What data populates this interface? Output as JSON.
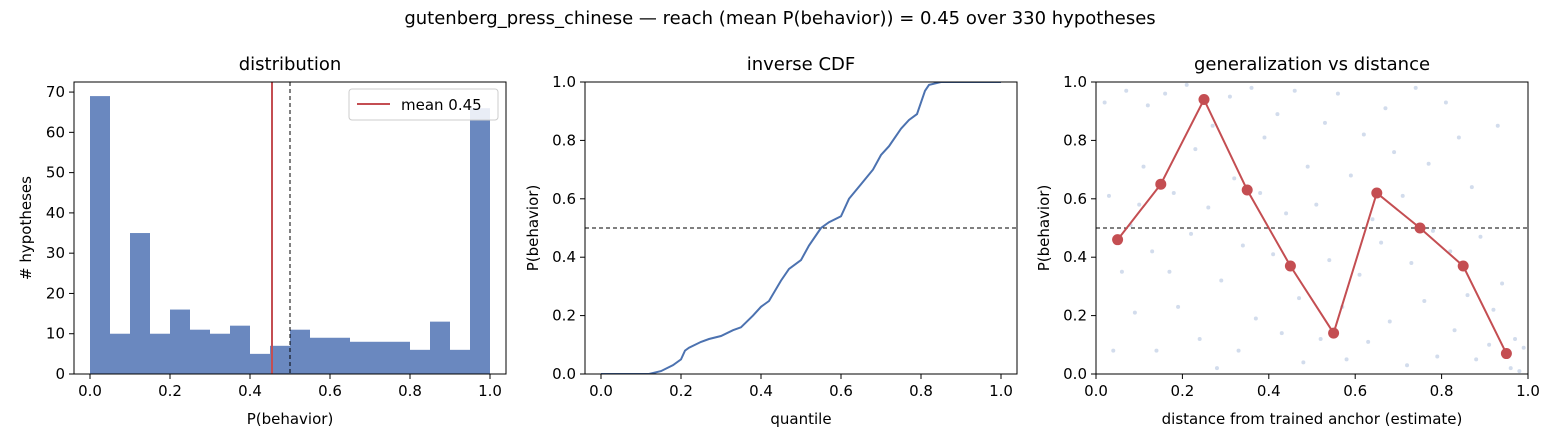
{
  "figure": {
    "suptitle": "gutenberg_press_chinese  —  reach (mean P(behavior)) = 0.45  over 330 hypotheses"
  },
  "colors": {
    "hist": "#6a88bf",
    "mean_line": "#c44e52",
    "cdf_line": "#4c72b0",
    "dots": "#c44e52",
    "scatter": "#b4c4e0"
  },
  "chart_data": [
    {
      "type": "bar",
      "title": "distribution",
      "xlabel": "P(behavior)",
      "ylabel": "# hypotheses",
      "bin_edges": [
        0.0,
        0.05,
        0.1,
        0.15,
        0.2,
        0.25,
        0.3,
        0.35,
        0.4,
        0.45,
        0.5,
        0.55,
        0.6,
        0.65,
        0.7,
        0.75,
        0.8,
        0.85,
        0.9,
        0.95,
        1.0
      ],
      "values": [
        69,
        10,
        35,
        10,
        16,
        11,
        10,
        12,
        5,
        7,
        11,
        9,
        9,
        8,
        8,
        8,
        6,
        13,
        6,
        66
      ],
      "xlim": [
        -0.04,
        1.04
      ],
      "ylim": [
        0,
        72.5
      ],
      "xticks": [
        0.0,
        0.2,
        0.4,
        0.6,
        0.8,
        1.0
      ],
      "xtick_labels": [
        "0.0",
        "0.2",
        "0.4",
        "0.6",
        "0.8",
        "1.0"
      ],
      "yticks": [
        0,
        10,
        20,
        30,
        40,
        50,
        60,
        70
      ],
      "ytick_labels": [
        "0",
        "10",
        "20",
        "30",
        "40",
        "50",
        "60",
        "70"
      ],
      "mean": 0.455,
      "threshold": 0.5,
      "legend": {
        "label": "mean 0.45",
        "position": "upper right"
      },
      "grid": false
    },
    {
      "type": "line",
      "title": "inverse CDF",
      "xlabel": "quantile",
      "ylabel": "P(behavior)",
      "x": [
        0.0,
        0.12,
        0.15,
        0.18,
        0.2,
        0.21,
        0.22,
        0.25,
        0.27,
        0.3,
        0.33,
        0.35,
        0.38,
        0.4,
        0.42,
        0.45,
        0.47,
        0.5,
        0.52,
        0.55,
        0.57,
        0.6,
        0.62,
        0.65,
        0.68,
        0.7,
        0.72,
        0.75,
        0.77,
        0.79,
        0.8,
        0.81,
        0.82,
        0.85,
        1.0
      ],
      "values": [
        0.0,
        0.0,
        0.01,
        0.03,
        0.05,
        0.08,
        0.09,
        0.11,
        0.12,
        0.13,
        0.15,
        0.16,
        0.2,
        0.23,
        0.25,
        0.32,
        0.36,
        0.39,
        0.44,
        0.5,
        0.52,
        0.54,
        0.6,
        0.65,
        0.7,
        0.75,
        0.78,
        0.84,
        0.87,
        0.89,
        0.93,
        0.97,
        0.99,
        1.0,
        1.0
      ],
      "xlim": [
        -0.04,
        1.04
      ],
      "ylim": [
        0,
        1
      ],
      "xticks": [
        0.0,
        0.2,
        0.4,
        0.6,
        0.8,
        1.0
      ],
      "xtick_labels": [
        "0.0",
        "0.2",
        "0.4",
        "0.6",
        "0.8",
        "1.0"
      ],
      "yticks": [
        0.0,
        0.2,
        0.4,
        0.6,
        0.8,
        1.0
      ],
      "ytick_labels": [
        "0.0",
        "0.2",
        "0.4",
        "0.6",
        "0.8",
        "1.0"
      ],
      "threshold": 0.5,
      "grid": false
    },
    {
      "type": "scatter",
      "title": "generalization vs distance",
      "xlabel": "distance from trained anchor (estimate)",
      "ylabel": "P(behavior)",
      "x": [
        0.05,
        0.15,
        0.25,
        0.35,
        0.45,
        0.55,
        0.65,
        0.75,
        0.85,
        0.95
      ],
      "values": [
        0.46,
        0.65,
        0.94,
        0.63,
        0.37,
        0.14,
        0.62,
        0.5,
        0.37,
        0.07
      ],
      "background_points": [
        [
          0.02,
          0.93
        ],
        [
          0.03,
          0.61
        ],
        [
          0.04,
          0.08
        ],
        [
          0.06,
          0.35
        ],
        [
          0.07,
          0.97
        ],
        [
          0.08,
          0.51
        ],
        [
          0.09,
          0.21
        ],
        [
          0.1,
          0.58
        ],
        [
          0.11,
          0.71
        ],
        [
          0.12,
          0.92
        ],
        [
          0.13,
          0.42
        ],
        [
          0.14,
          0.08
        ],
        [
          0.16,
          0.96
        ],
        [
          0.17,
          0.35
        ],
        [
          0.18,
          0.62
        ],
        [
          0.19,
          0.23
        ],
        [
          0.21,
          0.99
        ],
        [
          0.22,
          0.48
        ],
        [
          0.23,
          0.77
        ],
        [
          0.24,
          0.12
        ],
        [
          0.26,
          0.57
        ],
        [
          0.27,
          0.85
        ],
        [
          0.28,
          0.02
        ],
        [
          0.29,
          0.32
        ],
        [
          0.31,
          0.95
        ],
        [
          0.32,
          0.67
        ],
        [
          0.33,
          0.08
        ],
        [
          0.34,
          0.44
        ],
        [
          0.36,
          0.98
        ],
        [
          0.37,
          0.19
        ],
        [
          0.38,
          0.62
        ],
        [
          0.39,
          0.81
        ],
        [
          0.41,
          0.41
        ],
        [
          0.42,
          0.89
        ],
        [
          0.43,
          0.14
        ],
        [
          0.44,
          0.55
        ],
        [
          0.46,
          0.97
        ],
        [
          0.47,
          0.26
        ],
        [
          0.48,
          0.04
        ],
        [
          0.49,
          0.71
        ],
        [
          0.51,
          0.58
        ],
        [
          0.52,
          0.12
        ],
        [
          0.53,
          0.86
        ],
        [
          0.54,
          0.39
        ],
        [
          0.56,
          0.96
        ],
        [
          0.57,
          0.23
        ],
        [
          0.58,
          0.05
        ],
        [
          0.59,
          0.68
        ],
        [
          0.61,
          0.34
        ],
        [
          0.62,
          0.82
        ],
        [
          0.63,
          0.11
        ],
        [
          0.64,
          0.53
        ],
        [
          0.66,
          0.45
        ],
        [
          0.67,
          0.91
        ],
        [
          0.68,
          0.18
        ],
        [
          0.69,
          0.76
        ],
        [
          0.71,
          0.61
        ],
        [
          0.72,
          0.03
        ],
        [
          0.73,
          0.38
        ],
        [
          0.74,
          0.98
        ],
        [
          0.76,
          0.25
        ],
        [
          0.77,
          0.72
        ],
        [
          0.78,
          0.49
        ],
        [
          0.79,
          0.06
        ],
        [
          0.81,
          0.93
        ],
        [
          0.82,
          0.42
        ],
        [
          0.83,
          0.15
        ],
        [
          0.84,
          0.81
        ],
        [
          0.86,
          0.27
        ],
        [
          0.87,
          0.64
        ],
        [
          0.88,
          0.05
        ],
        [
          0.89,
          0.47
        ],
        [
          0.91,
          0.1
        ],
        [
          0.92,
          0.22
        ],
        [
          0.93,
          0.85
        ],
        [
          0.94,
          0.31
        ],
        [
          0.96,
          0.02
        ],
        [
          0.97,
          0.12
        ],
        [
          0.98,
          0.01
        ],
        [
          0.99,
          0.09
        ]
      ],
      "xlim": [
        0,
        1
      ],
      "ylim": [
        0,
        1
      ],
      "xticks": [
        0.0,
        0.2,
        0.4,
        0.6,
        0.8,
        1.0
      ],
      "xtick_labels": [
        "0.0",
        "0.2",
        "0.4",
        "0.6",
        "0.8",
        "1.0"
      ],
      "yticks": [
        0.0,
        0.2,
        0.4,
        0.6,
        0.8,
        1.0
      ],
      "ytick_labels": [
        "0.0",
        "0.2",
        "0.4",
        "0.6",
        "0.8",
        "1.0"
      ],
      "threshold": 0.5,
      "grid": false
    }
  ]
}
